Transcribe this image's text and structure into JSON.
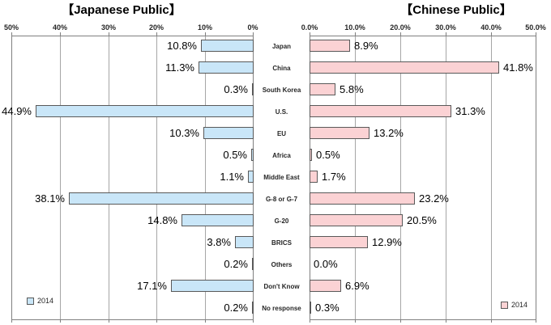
{
  "left_chart": {
    "title": "【Japanese Public】",
    "legend_label": "2014",
    "axis_ticks": [
      "50%",
      "40%",
      "30%",
      "20%",
      "10%",
      "0%"
    ],
    "bar_fill": "#C9E6F8",
    "bar_border": "#595959"
  },
  "right_chart": {
    "title": "【Chinese Public】",
    "legend_label": "2014",
    "axis_ticks": [
      "0.0%",
      "10.0%",
      "20.0%",
      "30.0%",
      "40.0%",
      "50.0%"
    ],
    "bar_fill": "#FBD2D4",
    "bar_border": "#595959"
  },
  "colors": {
    "gridline": "#A6A6A6",
    "axis_line": "#808080",
    "text": "#000000"
  },
  "chart_data": {
    "type": "bar",
    "orientation": "horizontal",
    "title_left": "【Japanese Public】",
    "title_right": "【Chinese Public】",
    "categories": [
      "Japan",
      "China",
      "South Korea",
      "U.S.",
      "EU",
      "Africa",
      "Middle East",
      "G-8 or G-7",
      "G-20",
      "BRICS",
      "Others",
      "Don't Know",
      "No response"
    ],
    "series": [
      {
        "name": "Japanese Public",
        "year": "2014",
        "values": [
          10.8,
          11.3,
          0.3,
          44.9,
          10.3,
          0.5,
          1.1,
          38.1,
          14.8,
          3.8,
          0.2,
          17.1,
          0.2
        ],
        "labels": [
          "10.8%",
          "11.3%",
          "0.3%",
          "44.9%",
          "10.3%",
          "0.5%",
          "1.1%",
          "38.1%",
          "14.8%",
          "3.8%",
          "0.2%",
          "17.1%",
          "0.2%"
        ]
      },
      {
        "name": "Chinese Public",
        "year": "2014",
        "values": [
          8.9,
          41.8,
          5.8,
          31.3,
          13.2,
          0.5,
          1.7,
          23.2,
          20.5,
          12.9,
          0.0,
          6.9,
          0.3
        ],
        "labels": [
          "8.9%",
          "41.8%",
          "5.8%",
          "31.3%",
          "13.2%",
          "0.5%",
          "1.7%",
          "23.2%",
          "20.5%",
          "12.9%",
          "0.0%",
          "6.9%",
          "0.3%"
        ]
      }
    ],
    "xlim": [
      0,
      50
    ],
    "grid": true,
    "axis_position": "top",
    "left_axis_reversed": true,
    "legend_position": "bottom-inside"
  }
}
